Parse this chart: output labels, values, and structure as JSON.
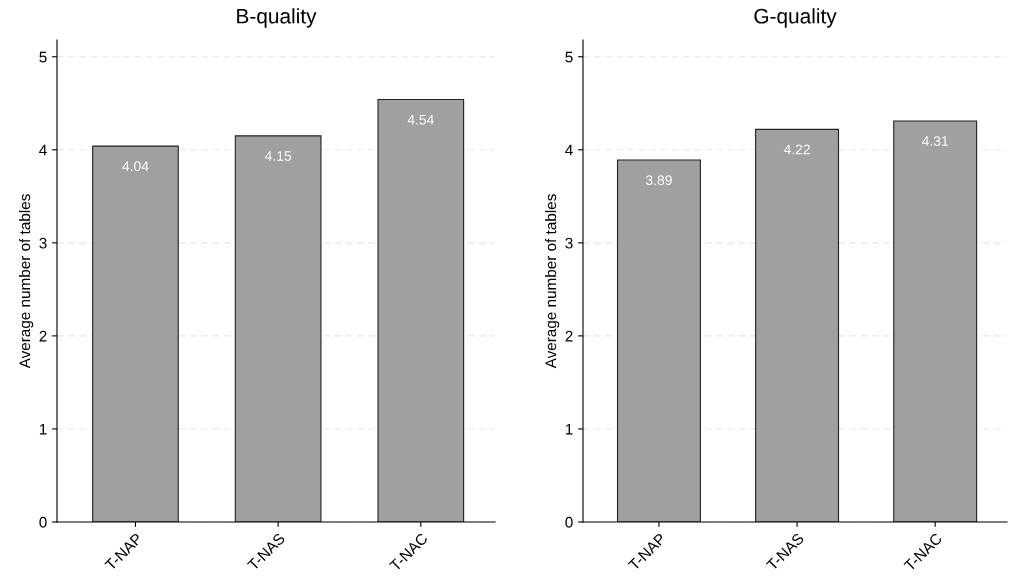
{
  "chart_data": [
    {
      "type": "bar",
      "title": "B-quality",
      "ylabel": "Average number of tables",
      "categories": [
        "T-NAP",
        "T-NAS",
        "T-NAC"
      ],
      "values": [
        4.04,
        4.15,
        4.54
      ],
      "color": "#a0a0a0",
      "ylim": [
        0,
        5.18
      ],
      "yticks": [
        0,
        1,
        2,
        3,
        4,
        5
      ],
      "grid": "y",
      "data_labels": true,
      "legend": false
    },
    {
      "type": "bar",
      "title": "G-quality",
      "ylabel": "Average number of tables",
      "categories": [
        "T-NAP",
        "T-NAS",
        "T-NAC"
      ],
      "values": [
        3.89,
        4.22,
        4.31
      ],
      "color": "#a0a0a0",
      "ylim": [
        0,
        5.18
      ],
      "yticks": [
        0,
        1,
        2,
        3,
        4,
        5
      ],
      "grid": "y",
      "data_labels": true,
      "legend": false
    }
  ]
}
